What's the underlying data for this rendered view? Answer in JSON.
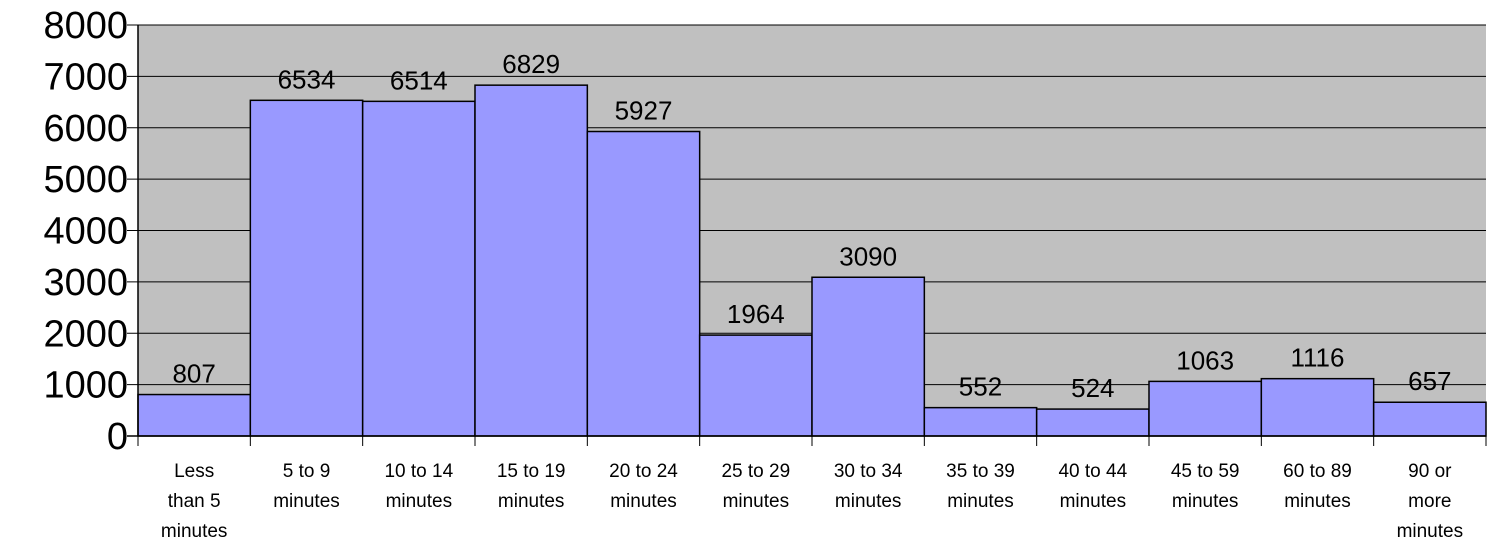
{
  "chart_data": {
    "type": "bar",
    "title": "",
    "xlabel": "",
    "ylabel": "",
    "ylim": [
      0,
      8000
    ],
    "yticks": [
      0,
      1000,
      2000,
      3000,
      4000,
      5000,
      6000,
      7000,
      8000
    ],
    "grid": true,
    "legend": "none",
    "categories": [
      [
        "Less",
        "than 5",
        "minutes"
      ],
      [
        "5 to 9",
        "minutes"
      ],
      [
        "10 to 14",
        "minutes"
      ],
      [
        "15 to 19",
        "minutes"
      ],
      [
        "20 to 24",
        "minutes"
      ],
      [
        "25 to 29",
        "minutes"
      ],
      [
        "30 to 34",
        "minutes"
      ],
      [
        "35 to 39",
        "minutes"
      ],
      [
        "40 to 44",
        "minutes"
      ],
      [
        "45 to 59",
        "minutes"
      ],
      [
        "60 to 89",
        "minutes"
      ],
      [
        "90 or",
        "more",
        "minutes"
      ]
    ],
    "values": [
      807,
      6534,
      6514,
      6829,
      5927,
      1964,
      3090,
      552,
      524,
      1063,
      1116,
      657
    ],
    "colors": {
      "bar_fill": "#9999ff",
      "bar_stroke": "#000000",
      "plot_background": "#c0c0c0",
      "gridline": "#000000"
    }
  }
}
